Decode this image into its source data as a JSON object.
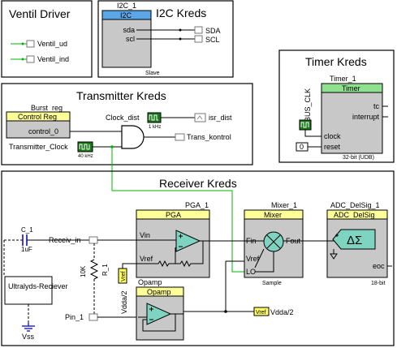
{
  "groups": {
    "ventil": {
      "title": "Ventil Driver",
      "pins": [
        "Ventil_ud",
        "Ventil_ind"
      ]
    },
    "i2c": {
      "title": "I2C Kreds",
      "instance": "I2C_1",
      "header": "I2C",
      "port_sda": "sda",
      "port_scl": "scl",
      "mode": "Slave",
      "pins": [
        "SDA",
        "SCL"
      ]
    },
    "timer": {
      "title": "Timer Kreds",
      "instance": "Timer_1",
      "header": "Timer",
      "port_tc": "tc",
      "port_interrupt": "interrupt",
      "port_clock": "clock",
      "port_reset": "reset",
      "subtitle": "32-bit (UDB)",
      "clock_net": "BUS_CLK",
      "reset_const": "0"
    },
    "transmitter": {
      "title": "Transmitter Kreds",
      "instance": "Burst_reg",
      "header": "Control Reg",
      "port": "control_0",
      "clock_dist": "Clock_dist",
      "clock_dist_freq": "1 kHz",
      "clock_tx": "Transmitter_Clock",
      "clock_tx_freq": "40 kHz",
      "isr": "isr_dist",
      "out_pin": "Trans_kontrol"
    },
    "receiver": {
      "title": "Receiver Kreds",
      "cap_name": "C_1",
      "cap_value": "1uF",
      "in_pin": "Receiv_in",
      "resistor_name": "R_1",
      "resistor_value": "10K",
      "source_box": "Ultralyds-Reciever",
      "ground": "Vss",
      "pin1": "Pin_1",
      "pga_instance": "PGA_1",
      "pga_header": "PGA",
      "pga_vin": "Vin",
      "pga_vref": "Vref",
      "mixer_instance": "Mixer_1",
      "mixer_header": "Mixer",
      "mixer_fin": "Fin",
      "mixer_fout": "Fout",
      "mixer_vref": "Vref",
      "mixer_lo": "LO",
      "mixer_mode": "Sample",
      "adc_instance": "ADC_DelSig_1",
      "adc_header": "ADC_DelSig",
      "adc_symbol": "ΔΣ",
      "adc_eoc": "eoc",
      "adc_bits": "18-bit",
      "opamp_instance": "Opamp",
      "opamp_header": "Opamp",
      "vref_tag": "Vref",
      "vdda_label": "Vdda/2",
      "vdda_out_label": "Vdda/2"
    }
  },
  "colors": {
    "wire": "#00b400",
    "header": "#ffff99",
    "block": "#c8c8c8",
    "component": "#7fd4c1"
  }
}
